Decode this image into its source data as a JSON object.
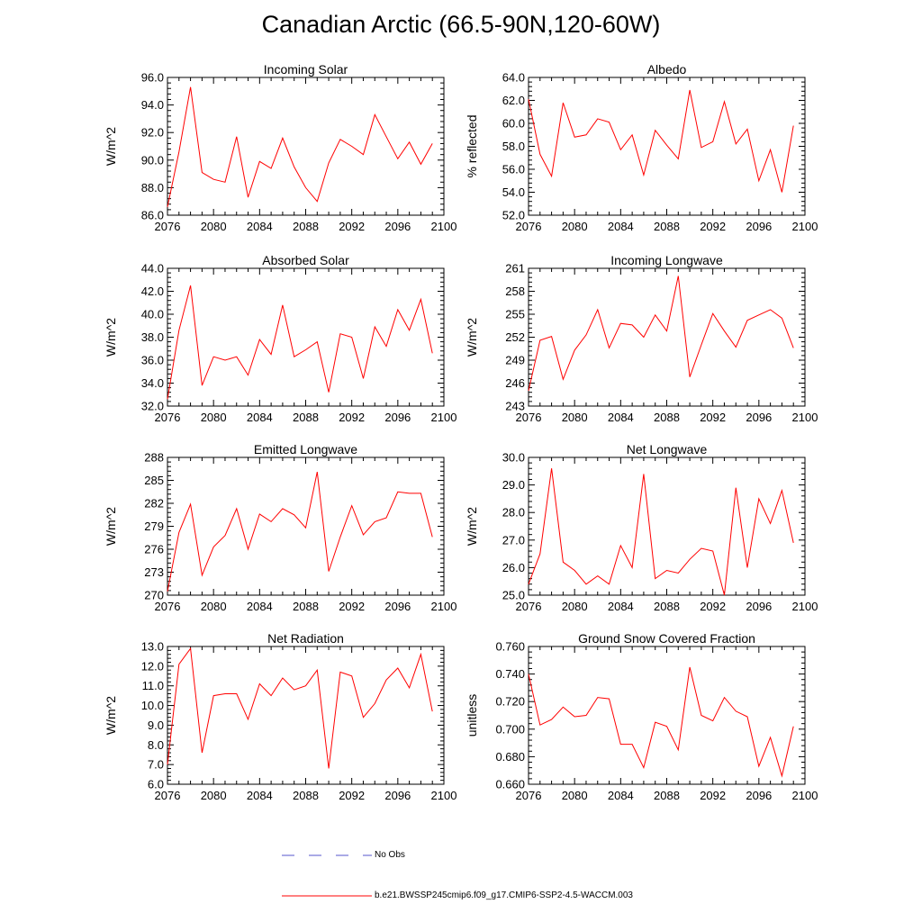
{
  "title": "Canadian Arctic (66.5-90N,120-60W)",
  "legend": {
    "obs_label": "No Obs",
    "obs_color": "#5555cc",
    "model_label": "b.e21.BWSSP245cmip6.f09_g17.CMIP6-SSP2-4.5-WACCM.003",
    "model_color": "#ff0000"
  },
  "chart_data": [
    {
      "type": "line",
      "title": "Incoming Solar",
      "ylabel": "W/m^2",
      "xlim": [
        2076,
        2100
      ],
      "xticks": [
        "2076",
        "2080",
        "2084",
        "2088",
        "2092",
        "2096",
        "2100"
      ],
      "ylim": [
        86.0,
        96.0
      ],
      "yticks": [
        "86.0",
        "88.0",
        "90.0",
        "92.0",
        "94.0",
        "96.0"
      ],
      "x": [
        2076,
        2077,
        2078,
        2079,
        2080,
        2081,
        2082,
        2083,
        2084,
        2085,
        2086,
        2087,
        2088,
        2089,
        2090,
        2091,
        2092,
        2093,
        2094,
        2095,
        2096,
        2097,
        2098,
        2099
      ],
      "series": [
        {
          "color": "#ff0000",
          "values": [
            86.6,
            90.6,
            95.3,
            89.1,
            88.6,
            88.4,
            91.7,
            87.3,
            89.9,
            89.4,
            91.6,
            89.5,
            88.0,
            87.0,
            89.8,
            91.5,
            91.0,
            90.4,
            93.3,
            91.7,
            90.1,
            91.3,
            89.7,
            91.2
          ]
        }
      ]
    },
    {
      "type": "line",
      "title": "Albedo",
      "ylabel": "% reflected",
      "xlim": [
        2076,
        2100
      ],
      "xticks": [
        "2076",
        "2080",
        "2084",
        "2088",
        "2092",
        "2096",
        "2100"
      ],
      "ylim": [
        52.0,
        64.0
      ],
      "yticks": [
        "52.0",
        "54.0",
        "56.0",
        "58.0",
        "60.0",
        "62.0",
        "64.0"
      ],
      "x": [
        2076,
        2077,
        2078,
        2079,
        2080,
        2081,
        2082,
        2083,
        2084,
        2085,
        2086,
        2087,
        2088,
        2089,
        2090,
        2091,
        2092,
        2093,
        2094,
        2095,
        2096,
        2097,
        2098,
        2099
      ],
      "series": [
        {
          "color": "#ff0000",
          "values": [
            62.1,
            57.3,
            55.4,
            61.8,
            58.8,
            59.0,
            60.4,
            60.1,
            57.7,
            59.0,
            55.5,
            59.4,
            58.1,
            56.9,
            62.9,
            57.9,
            58.4,
            61.9,
            58.2,
            59.5,
            55.0,
            57.7,
            54.0,
            59.8
          ]
        }
      ]
    },
    {
      "type": "line",
      "title": "Absorbed Solar",
      "ylabel": "W/m^2",
      "xlim": [
        2076,
        2100
      ],
      "xticks": [
        "2076",
        "2080",
        "2084",
        "2088",
        "2092",
        "2096",
        "2100"
      ],
      "ylim": [
        32.0,
        44.0
      ],
      "yticks": [
        "32.0",
        "34.0",
        "36.0",
        "38.0",
        "40.0",
        "42.0",
        "44.0"
      ],
      "x": [
        2076,
        2077,
        2078,
        2079,
        2080,
        2081,
        2082,
        2083,
        2084,
        2085,
        2086,
        2087,
        2088,
        2089,
        2090,
        2091,
        2092,
        2093,
        2094,
        2095,
        2096,
        2097,
        2098,
        2099
      ],
      "series": [
        {
          "color": "#ff0000",
          "values": [
            32.6,
            38.6,
            42.5,
            33.8,
            36.3,
            36.0,
            36.3,
            34.7,
            37.8,
            36.5,
            40.8,
            36.3,
            36.9,
            37.6,
            33.2,
            38.3,
            38.0,
            34.4,
            38.9,
            37.2,
            40.4,
            38.6,
            41.3,
            36.6
          ]
        }
      ]
    },
    {
      "type": "line",
      "title": "Incoming Longwave",
      "ylabel": "W/m^2",
      "xlim": [
        2076,
        2100
      ],
      "xticks": [
        "2076",
        "2080",
        "2084",
        "2088",
        "2092",
        "2096",
        "2100"
      ],
      "ylim": [
        243,
        261
      ],
      "yticks": [
        "243",
        "246",
        "249",
        "252",
        "255",
        "258",
        "261"
      ],
      "x": [
        2076,
        2077,
        2078,
        2079,
        2080,
        2081,
        2082,
        2083,
        2084,
        2085,
        2086,
        2087,
        2088,
        2089,
        2090,
        2091,
        2092,
        2093,
        2094,
        2095,
        2096,
        2097,
        2098,
        2099
      ],
      "series": [
        {
          "color": "#ff0000",
          "values": [
            245.0,
            251.6,
            252.1,
            246.5,
            250.3,
            252.3,
            255.6,
            250.6,
            253.8,
            253.6,
            252.0,
            254.9,
            252.8,
            260.0,
            246.8,
            251.0,
            255.1,
            252.8,
            250.7,
            254.2,
            254.9,
            255.6,
            254.5,
            250.6
          ]
        }
      ]
    },
    {
      "type": "line",
      "title": "Emitted Longwave",
      "ylabel": "W/m^2",
      "xlim": [
        2076,
        2100
      ],
      "xticks": [
        "2076",
        "2080",
        "2084",
        "2088",
        "2092",
        "2096",
        "2100"
      ],
      "ylim": [
        270,
        288
      ],
      "yticks": [
        "270",
        "273",
        "276",
        "279",
        "282",
        "285",
        "288"
      ],
      "x": [
        2076,
        2077,
        2078,
        2079,
        2080,
        2081,
        2082,
        2083,
        2084,
        2085,
        2086,
        2087,
        2088,
        2089,
        2090,
        2091,
        2092,
        2093,
        2094,
        2095,
        2096,
        2097,
        2098,
        2099
      ],
      "series": [
        {
          "color": "#ff0000",
          "values": [
            270.5,
            278.2,
            281.9,
            272.6,
            276.3,
            277.8,
            281.3,
            276.0,
            280.6,
            279.6,
            281.3,
            280.5,
            278.8,
            286.1,
            273.1,
            277.6,
            281.7,
            277.9,
            279.6,
            280.1,
            283.5,
            283.3,
            283.3,
            277.6
          ]
        }
      ]
    },
    {
      "type": "line",
      "title": "Net Longwave",
      "ylabel": "W/m^2",
      "xlim": [
        2076,
        2100
      ],
      "xticks": [
        "2076",
        "2080",
        "2084",
        "2088",
        "2092",
        "2096",
        "2100"
      ],
      "ylim": [
        25.0,
        30.0
      ],
      "yticks": [
        "25.0",
        "26.0",
        "27.0",
        "28.0",
        "29.0",
        "30.0"
      ],
      "x": [
        2076,
        2077,
        2078,
        2079,
        2080,
        2081,
        2082,
        2083,
        2084,
        2085,
        2086,
        2087,
        2088,
        2089,
        2090,
        2091,
        2092,
        2093,
        2094,
        2095,
        2096,
        2097,
        2098,
        2099
      ],
      "series": [
        {
          "color": "#ff0000",
          "values": [
            25.4,
            26.5,
            29.6,
            26.2,
            25.9,
            25.4,
            25.7,
            25.4,
            26.8,
            26.0,
            29.4,
            25.6,
            25.9,
            25.8,
            26.3,
            26.7,
            26.6,
            25.0,
            28.9,
            26.0,
            28.5,
            27.6,
            28.8,
            26.9
          ]
        }
      ]
    },
    {
      "type": "line",
      "title": "Net Radiation",
      "ylabel": "W/m^2",
      "xlim": [
        2076,
        2100
      ],
      "xticks": [
        "2076",
        "2080",
        "2084",
        "2088",
        "2092",
        "2096",
        "2100"
      ],
      "ylim": [
        6.0,
        13.0
      ],
      "yticks": [
        "6.0",
        "7.0",
        "8.0",
        "9.0",
        "10.0",
        "11.0",
        "12.0",
        "13.0"
      ],
      "x": [
        2076,
        2077,
        2078,
        2079,
        2080,
        2081,
        2082,
        2083,
        2084,
        2085,
        2086,
        2087,
        2088,
        2089,
        2090,
        2091,
        2092,
        2093,
        2094,
        2095,
        2096,
        2097,
        2098,
        2099
      ],
      "series": [
        {
          "color": "#ff0000",
          "values": [
            7.0,
            12.1,
            12.9,
            7.6,
            10.5,
            10.6,
            10.6,
            9.3,
            11.1,
            10.5,
            11.4,
            10.8,
            11.0,
            11.8,
            6.8,
            11.7,
            11.5,
            9.4,
            10.1,
            11.3,
            11.9,
            10.9,
            12.6,
            9.7
          ]
        }
      ]
    },
    {
      "type": "line",
      "title": "Ground Snow Covered Fraction",
      "ylabel": "unitless",
      "xlim": [
        2076,
        2100
      ],
      "xticks": [
        "2076",
        "2080",
        "2084",
        "2088",
        "2092",
        "2096",
        "2100"
      ],
      "ylim": [
        0.66,
        0.76
      ],
      "yticks": [
        "0.660",
        "0.680",
        "0.700",
        "0.720",
        "0.740",
        "0.760"
      ],
      "x": [
        2076,
        2077,
        2078,
        2079,
        2080,
        2081,
        2082,
        2083,
        2084,
        2085,
        2086,
        2087,
        2088,
        2089,
        2090,
        2091,
        2092,
        2093,
        2094,
        2095,
        2096,
        2097,
        2098,
        2099
      ],
      "series": [
        {
          "color": "#ff0000",
          "values": [
            0.74,
            0.703,
            0.707,
            0.716,
            0.709,
            0.71,
            0.723,
            0.722,
            0.689,
            0.689,
            0.672,
            0.705,
            0.702,
            0.685,
            0.745,
            0.71,
            0.706,
            0.723,
            0.713,
            0.709,
            0.673,
            0.694,
            0.666,
            0.702
          ]
        }
      ]
    }
  ]
}
